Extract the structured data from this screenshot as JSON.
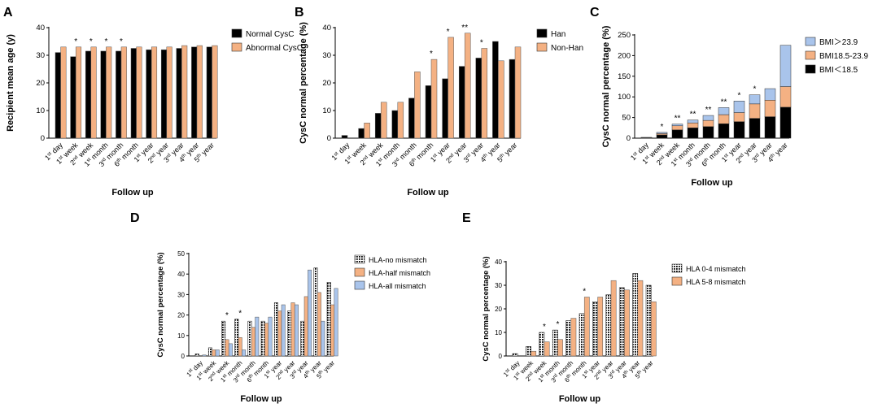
{
  "colors": {
    "black": "#000000",
    "orange": "#F4B183",
    "blue": "#A9C4EB",
    "orangeDark": "#E8A56D"
  },
  "chart_data": [
    {
      "id": "A",
      "type": "bar",
      "letter": "A",
      "title": "",
      "ylabel": "Recipient mean age (y)",
      "xlabel": "Follow up",
      "ylim": [
        0,
        40
      ],
      "yticks": [
        0,
        10,
        20,
        30,
        40
      ],
      "legend": "right",
      "categories": [
        {
          "base": "1",
          "sup": "st",
          "rest": " day"
        },
        {
          "base": "1",
          "sup": "st",
          "rest": " week"
        },
        {
          "base": "2",
          "sup": "nd",
          "rest": " week"
        },
        {
          "base": "1",
          "sup": "st",
          "rest": " month"
        },
        {
          "base": "3",
          "sup": "rd",
          "rest": " month"
        },
        {
          "base": "6",
          "sup": "th",
          "rest": " month"
        },
        {
          "base": "1",
          "sup": "st",
          "rest": " year"
        },
        {
          "base": "2",
          "sup": "nd",
          "rest": " year"
        },
        {
          "base": "3",
          "sup": "rd",
          "rest": " year"
        },
        {
          "base": "4",
          "sup": "th",
          "rest": " year"
        },
        {
          "base": "5",
          "sup": "th",
          "rest": " year"
        }
      ],
      "series": [
        {
          "name": "Normal CysC",
          "color": "#000000",
          "pattern": "solid",
          "values": [
            31,
            29.5,
            31.5,
            31.5,
            31.5,
            32.5,
            32,
            32,
            32.5,
            33,
            33
          ]
        },
        {
          "name": "Abnormal CysC",
          "color": "#F4B183",
          "pattern": "solid",
          "values": [
            33,
            33,
            33,
            33,
            33,
            33,
            33,
            33,
            33.5,
            33.5,
            33.5
          ]
        }
      ],
      "annotations": [
        {
          "category": 1,
          "text": "*"
        },
        {
          "category": 2,
          "text": "*"
        },
        {
          "category": 3,
          "text": "*"
        },
        {
          "category": 4,
          "text": "*"
        }
      ]
    },
    {
      "id": "B",
      "type": "bar",
      "letter": "B",
      "title": "",
      "ylabel": "CysC normal percentage (%)",
      "xlabel": "Follow up",
      "ylim": [
        0,
        40
      ],
      "yticks": [
        0,
        10,
        20,
        30,
        40
      ],
      "legend": "right",
      "categories": [
        {
          "base": "1",
          "sup": "st",
          "rest": " day"
        },
        {
          "base": "1",
          "sup": "st",
          "rest": " week"
        },
        {
          "base": "2",
          "sup": "nd",
          "rest": " week"
        },
        {
          "base": "1",
          "sup": "st",
          "rest": " month"
        },
        {
          "base": "3",
          "sup": "rd",
          "rest": " month"
        },
        {
          "base": "6",
          "sup": "th",
          "rest": " month"
        },
        {
          "base": "1",
          "sup": "st",
          "rest": " year"
        },
        {
          "base": "2",
          "sup": "nd",
          "rest": " year"
        },
        {
          "base": "3",
          "sup": "rd",
          "rest": " year"
        },
        {
          "base": "4",
          "sup": "th",
          "rest": " year"
        },
        {
          "base": "5",
          "sup": "th",
          "rest": " year"
        }
      ],
      "series": [
        {
          "name": "Han",
          "color": "#000000",
          "pattern": "solid",
          "values": [
            1,
            3.5,
            9,
            10,
            14.5,
            19,
            21.5,
            26,
            29,
            35,
            28.5
          ]
        },
        {
          "name": "Non-Han",
          "color": "#F4B183",
          "pattern": "solid",
          "values": [
            0,
            5.5,
            13,
            13,
            24,
            28.5,
            36.5,
            38,
            32.5,
            28,
            33
          ]
        }
      ],
      "annotations": [
        {
          "category": 5,
          "text": "*"
        },
        {
          "category": 6,
          "text": "*"
        },
        {
          "category": 7,
          "text": "**"
        },
        {
          "category": 8,
          "text": "*"
        }
      ]
    },
    {
      "id": "C",
      "type": "stacked-bar",
      "letter": "C",
      "title": "",
      "ylabel": "CysC normal percentage (%)",
      "xlabel": "Follow up",
      "ylim": [
        0,
        250
      ],
      "yticks": [
        0,
        50,
        100,
        150,
        200,
        250
      ],
      "legend": "right",
      "categories": [
        {
          "base": "1",
          "sup": "st",
          "rest": " day"
        },
        {
          "base": "1",
          "sup": "st",
          "rest": " week"
        },
        {
          "base": "2",
          "sup": "nd",
          "rest": " week"
        },
        {
          "base": "1",
          "sup": "st",
          "rest": " month"
        },
        {
          "base": "3",
          "sup": "rd",
          "rest": " month"
        },
        {
          "base": "6",
          "sup": "th",
          "rest": " month"
        },
        {
          "base": "1",
          "sup": "st",
          "rest": " year"
        },
        {
          "base": "2",
          "sup": "nd",
          "rest": " year"
        },
        {
          "base": "3",
          "sup": "rd",
          "rest": " year"
        },
        {
          "base": "4",
          "sup": "th",
          "rest": " year"
        }
      ],
      "series": [
        {
          "name": "BMI＜18.5",
          "color": "#000000",
          "pattern": "solid",
          "values": [
            1,
            8,
            20,
            25,
            28,
            35,
            40,
            48,
            52,
            75
          ]
        },
        {
          "name": "BMI18.5-23.9",
          "color": "#F4B183",
          "pattern": "solid",
          "values": [
            0.5,
            3,
            10,
            12,
            15,
            22,
            22,
            35,
            40,
            50
          ]
        },
        {
          "name": "BMI＞23.9",
          "color": "#A9C4EB",
          "pattern": "solid",
          "values": [
            0.5,
            3,
            4,
            7,
            12,
            17,
            28,
            22,
            28,
            100
          ]
        }
      ],
      "legend_order": [
        2,
        1,
        0
      ],
      "annotations": [
        {
          "category": 1,
          "text": "*"
        },
        {
          "category": 2,
          "text": "**"
        },
        {
          "category": 3,
          "text": "**"
        },
        {
          "category": 4,
          "text": "**"
        },
        {
          "category": 5,
          "text": "**"
        },
        {
          "category": 6,
          "text": "*"
        },
        {
          "category": 7,
          "text": "*"
        }
      ]
    },
    {
      "id": "D",
      "type": "bar",
      "letter": "D",
      "title": "",
      "ylabel": "CysC normal percentage (%)",
      "xlabel": "Follow up",
      "ylim": [
        0,
        50
      ],
      "yticks": [
        0,
        10,
        20,
        30,
        40,
        50
      ],
      "legend": "right",
      "categories": [
        {
          "base": "1",
          "sup": "st",
          "rest": " day"
        },
        {
          "base": "1",
          "sup": "st",
          "rest": " week"
        },
        {
          "base": "2",
          "sup": "nd",
          "rest": " week"
        },
        {
          "base": "1",
          "sup": "st",
          "rest": " month"
        },
        {
          "base": "3",
          "sup": "rd",
          "rest": " month"
        },
        {
          "base": "6",
          "sup": "th",
          "rest": " month"
        },
        {
          "base": "1",
          "sup": "st",
          "rest": " year"
        },
        {
          "base": "2",
          "sup": "nd",
          "rest": " year"
        },
        {
          "base": "3",
          "sup": "rd",
          "rest": " year"
        },
        {
          "base": "4",
          "sup": "th",
          "rest": " year"
        },
        {
          "base": "5",
          "sup": "th",
          "rest": " year"
        }
      ],
      "series": [
        {
          "name": "HLA-no mismatch",
          "color": "#000000",
          "pattern": "dots",
          "values": [
            1,
            4,
            17,
            18,
            17,
            17,
            26,
            22,
            17,
            43,
            36
          ]
        },
        {
          "name": "HLA-half mismatch",
          "color": "#F4B183",
          "pattern": "solid",
          "values": [
            0,
            3,
            8,
            9,
            14,
            16,
            22,
            26,
            29,
            31,
            25
          ]
        },
        {
          "name": "HLA-all mismatch",
          "color": "#A9C4EB",
          "pattern": "solid",
          "values": [
            0.5,
            3,
            6,
            3,
            19,
            19,
            25,
            25,
            42,
            17,
            33
          ]
        }
      ],
      "annotations": [
        {
          "category": 2,
          "text": "*"
        },
        {
          "category": 3,
          "text": "*"
        }
      ]
    },
    {
      "id": "E",
      "type": "bar",
      "letter": "E",
      "title": "",
      "ylabel": "CysC normal percentage (%)",
      "xlabel": "Follow up",
      "ylim": [
        0,
        40
      ],
      "yticks": [
        0,
        10,
        20,
        30,
        40
      ],
      "legend": "right",
      "categories": [
        {
          "base": "1",
          "sup": "st",
          "rest": " day"
        },
        {
          "base": "1",
          "sup": "st",
          "rest": " week"
        },
        {
          "base": "2",
          "sup": "nd",
          "rest": " week"
        },
        {
          "base": "1",
          "sup": "st",
          "rest": " month"
        },
        {
          "base": "3",
          "sup": "rd",
          "rest": " month"
        },
        {
          "base": "6",
          "sup": "th",
          "rest": " month"
        },
        {
          "base": "1",
          "sup": "st",
          "rest": " year"
        },
        {
          "base": "2",
          "sup": "nd",
          "rest": " year"
        },
        {
          "base": "3",
          "sup": "rd",
          "rest": " year"
        },
        {
          "base": "4",
          "sup": "th",
          "rest": " year"
        },
        {
          "base": "5",
          "sup": "th",
          "rest": " year"
        }
      ],
      "series": [
        {
          "name": "HLA 0-4 mismatch",
          "color": "#000000",
          "pattern": "dots",
          "values": [
            1,
            4,
            10,
            11,
            15,
            18,
            23,
            26,
            29,
            35,
            30
          ]
        },
        {
          "name": "HLA 5-8 mismatch",
          "color": "#F4B183",
          "pattern": "solid",
          "values": [
            0,
            2,
            6,
            7,
            16,
            25,
            25,
            32,
            28,
            32,
            23
          ]
        }
      ],
      "annotations": [
        {
          "category": 2,
          "text": "*"
        },
        {
          "category": 3,
          "text": "*"
        },
        {
          "category": 5,
          "text": "*"
        }
      ]
    }
  ]
}
